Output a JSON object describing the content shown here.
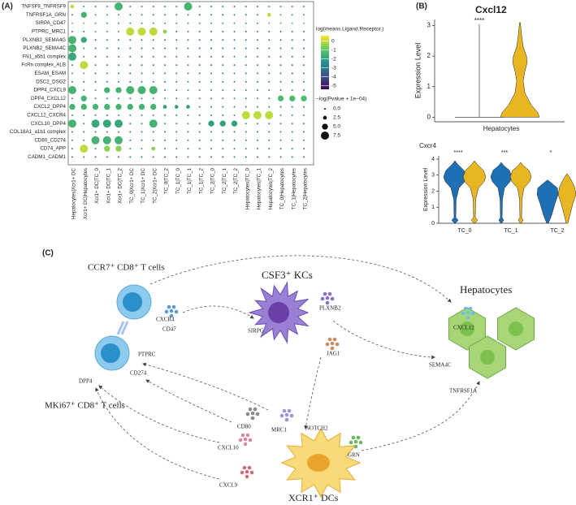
{
  "labels": [
    "(A)",
    "(B)",
    "(C)"
  ],
  "chart_data": [
    {
      "type": "dot",
      "x_categories": [
        "Hepatocytes|Xcr1+ DC",
        "Xcr1+ DC|Hepatocytes",
        "Xcr1+ DC|TC_0",
        "Xcr1+ DC|TC_1",
        "Xcr1+ DC|TC_2",
        "TC_0|Xcr1+ DC",
        "TC_1|Xcr1+ DC",
        "TC_2|Xcr1+ DC",
        "TC_0|TC_2",
        "TC_1|TC_0",
        "TC_1|TC_1",
        "TC_1|TC_2",
        "TC_2|TC_0",
        "TC_2|TC_1",
        "TC_2|TC_2",
        "Hepatocytes|TC_0",
        "Hepatocytes|TC_1",
        "Hepatocytes|TC_2",
        "TC_0|Hepatocytes",
        "TC_1|Hepatocytes",
        "TC_2|Hepatocytes"
      ],
      "y_categories": [
        "TNFSF9_TNFRSF9",
        "TNFRSF1A_GRN",
        "SIRPA_CD47",
        "PTPRC_MRC1",
        "PLXNB2_SEMA4G",
        "PLXNB2_SEMA4C",
        "FN1_a5b1 complex",
        "FcRn complex_ALB",
        "ESAM_ESAM",
        "DSC2_DSG2",
        "DPP4_CXCL9",
        "DPP4_CXCL12",
        "CXCL2_DPP4",
        "CXCL12_CXCR4",
        "CXCL10_DPP4",
        "COL18A1_a1b1 complex",
        "CD80_CD274",
        "CD74_APP",
        "CADM1_CADM1"
      ],
      "size_values": [
        [
          2.5,
          0,
          0,
          0,
          7.5,
          0,
          0,
          0,
          0,
          0,
          7.5,
          0,
          0,
          0,
          0,
          0,
          0,
          0,
          0,
          0,
          0
        ],
        [
          0,
          5,
          0,
          0,
          0,
          0,
          0,
          0,
          0,
          0,
          0,
          0,
          0,
          0,
          0,
          0,
          0,
          2.5,
          0,
          0,
          0
        ],
        [
          0,
          0,
          0,
          0,
          0,
          0,
          0,
          0,
          0,
          0,
          0,
          0,
          0,
          0,
          0,
          0,
          0,
          0,
          0,
          0,
          0
        ],
        [
          0,
          0,
          0,
          0,
          0,
          7.5,
          7.5,
          7.5,
          2.5,
          0,
          0,
          0,
          0,
          0,
          0,
          0,
          0,
          0,
          0,
          0,
          0
        ],
        [
          7.5,
          5,
          0,
          0,
          0,
          0,
          0,
          0,
          0,
          0,
          0,
          0,
          0,
          0,
          0,
          0,
          0,
          0,
          0,
          0,
          0
        ],
        [
          7.5,
          0,
          0,
          0,
          0,
          0,
          0,
          0,
          0,
          0,
          0,
          0,
          0,
          0,
          0,
          0,
          0,
          0,
          0,
          0,
          0
        ],
        [
          7.5,
          0,
          0,
          0,
          0,
          0,
          0,
          0,
          0,
          0,
          0,
          0,
          0,
          0,
          0,
          0,
          0,
          0,
          0,
          0,
          0
        ],
        [
          0,
          7.5,
          0,
          0,
          0,
          0,
          0,
          0,
          0,
          0,
          0,
          0,
          0,
          0,
          0,
          0,
          0,
          0,
          0,
          0,
          0
        ],
        [
          0,
          0,
          0,
          0,
          0,
          0,
          0,
          0,
          0,
          0,
          0,
          0,
          0,
          0,
          0,
          0,
          0,
          0,
          0,
          0,
          0
        ],
        [
          0,
          0,
          0,
          0,
          0,
          0,
          0,
          0,
          0,
          0,
          0,
          0,
          0,
          0,
          0,
          0,
          0,
          0,
          0,
          0,
          0
        ],
        [
          7.5,
          0,
          0,
          5,
          5,
          7.5,
          7.5,
          7.5,
          0,
          0,
          0,
          0,
          0,
          0,
          0,
          0,
          0,
          0,
          0,
          0,
          0
        ],
        [
          0,
          5,
          0,
          0,
          0,
          0,
          0,
          0,
          0,
          0,
          0,
          0,
          0,
          0,
          0,
          0,
          0,
          0,
          5,
          5,
          5
        ],
        [
          5,
          5,
          5,
          5,
          5,
          5,
          5,
          5,
          2.5,
          2.5,
          2.5,
          0,
          0,
          0,
          0,
          0,
          0,
          0,
          0,
          0,
          0
        ],
        [
          0,
          0,
          0,
          0,
          0,
          0,
          0,
          0,
          0,
          0,
          0,
          0,
          0,
          0,
          0,
          7.5,
          7.5,
          7.5,
          0,
          0,
          0
        ],
        [
          7.5,
          0,
          7.5,
          7.5,
          7.5,
          0,
          0,
          7.5,
          0,
          0,
          0,
          0,
          5,
          5,
          5,
          0,
          0,
          0,
          0,
          0,
          0
        ],
        [
          0,
          0,
          0,
          0,
          0,
          0,
          0,
          0,
          0,
          0,
          0,
          0,
          0,
          0,
          0,
          0,
          0,
          0,
          0,
          0,
          0
        ],
        [
          0,
          0,
          7.5,
          7.5,
          7.5,
          0,
          0,
          0,
          0,
          0,
          0,
          0,
          0,
          0,
          0,
          0,
          0,
          0,
          0,
          0,
          0
        ],
        [
          0,
          7.5,
          0,
          5,
          5,
          0,
          0,
          2.5,
          0,
          0,
          0,
          0,
          0,
          0,
          0,
          0,
          0,
          0,
          0,
          0,
          0
        ],
        [
          0,
          0,
          0,
          0,
          0,
          0,
          0,
          0,
          0,
          0,
          0,
          0,
          0,
          0,
          0,
          0,
          0,
          0,
          0,
          0,
          0
        ]
      ],
      "color_values": [
        [
          0,
          -2.5,
          -2.5,
          -2.5,
          -1.5,
          -3,
          -3,
          -3,
          -2.5,
          -2.5,
          -1.5,
          -2.5,
          -2.5,
          -2.5,
          -3,
          -3,
          -3,
          -2.5,
          -2.5,
          -2.5,
          -2.5
        ],
        [
          -2.5,
          -1.5,
          -2,
          -2,
          -2,
          -2.5,
          -2.5,
          -2.5,
          -3,
          -3,
          -3,
          -3,
          -3,
          -3,
          -3,
          -3,
          -3,
          0,
          -2,
          -2,
          -2
        ],
        [
          -1,
          -1,
          -2,
          -2,
          -2,
          -2,
          -2,
          -2,
          -2,
          -2,
          -2,
          -2,
          -2,
          -2,
          -2,
          -2,
          -2,
          -1,
          -1,
          -1,
          -1
        ],
        [
          -3,
          -3,
          -2,
          -2,
          -2,
          0,
          0,
          0,
          -0.5,
          -3,
          -3,
          -3,
          -3,
          -3,
          -3,
          -3,
          -3,
          -3,
          -3,
          -3,
          -3
        ],
        [
          -1.5,
          -1.8,
          -3,
          -3,
          -3,
          -3,
          -3,
          -3,
          -3,
          -3,
          -3,
          -3,
          -3,
          -3,
          -3,
          -3,
          -3,
          -3,
          -3,
          -3,
          -3
        ],
        [
          -1.5,
          -2.5,
          -3,
          -3,
          -3,
          -3,
          -3,
          -3,
          -3,
          -3,
          -3,
          -3,
          -3,
          -3,
          -3,
          -3,
          -3,
          -3,
          -3,
          -3,
          -3
        ],
        [
          -1.8,
          -2.5,
          -3,
          -3,
          -3,
          -3,
          -3,
          -3,
          -3,
          -3,
          -3,
          -3,
          -3,
          -3,
          -3,
          -3,
          -3,
          -3,
          -3,
          -3,
          -3
        ],
        [
          -2.5,
          0,
          -3,
          -3,
          -3,
          -3,
          -3,
          -3,
          -3,
          -3,
          -3,
          -3,
          -3,
          -3,
          -3,
          -3,
          -3,
          -3,
          -3,
          -3,
          -3
        ],
        [
          -2,
          -2,
          -3,
          -3,
          -3,
          -3,
          -3,
          -3,
          -3,
          -3,
          -3,
          -3,
          -3,
          -3,
          -3,
          -3,
          -3,
          -3,
          -3,
          -3,
          -3
        ],
        [
          -3,
          -3,
          -3,
          -3,
          -3,
          -3,
          -3,
          -3,
          -3,
          -3,
          -3,
          -3,
          -3,
          -3,
          -3,
          -3,
          -3,
          -3,
          -3,
          -3,
          -3
        ],
        [
          -1.5,
          -2.5,
          -2,
          -1.5,
          -1.5,
          -1.5,
          -1.5,
          -1.5,
          -2.5,
          -2.5,
          -2.5,
          -2.5,
          -2.5,
          -2.5,
          -2.5,
          -2.5,
          -2.5,
          -2.5,
          -2.5,
          -2.5,
          -2.5
        ],
        [
          -2.5,
          -1.5,
          -2.5,
          -2.5,
          -2.5,
          -2.5,
          -2.5,
          -2.5,
          -2.5,
          -2.5,
          -2.5,
          -2.5,
          -2.5,
          -2.5,
          -2.5,
          -2.5,
          -2.5,
          -2.5,
          -1.3,
          -1.3,
          -1.3
        ],
        [
          -1.5,
          -1.5,
          -1.5,
          -1.5,
          -1.5,
          -1.5,
          -1.5,
          -1.5,
          -2,
          -2,
          -2,
          -2.5,
          -2.5,
          -2.5,
          -2.5,
          -2.5,
          -2.5,
          -2.5,
          -2.5,
          -2.5,
          -2.5
        ],
        [
          -2.5,
          -2.5,
          -2.5,
          -2.5,
          -2.5,
          -2.5,
          -2.5,
          -2.5,
          -2.5,
          -2.5,
          -2.5,
          -2.5,
          -2.5,
          -2.5,
          -2.5,
          0,
          0,
          0,
          -2.5,
          -2.5,
          -2.5
        ],
        [
          -1.5,
          -2.5,
          -1.8,
          -1.8,
          -1.8,
          -2.5,
          -2.5,
          -1.5,
          -2.5,
          -2.5,
          -2.5,
          -2.5,
          -2,
          -2,
          -2,
          -2.5,
          -2.5,
          -2.5,
          -2.5,
          -2.5,
          -2.5
        ],
        [
          -3,
          -3,
          -3,
          -3,
          -3,
          -3,
          -3,
          -3,
          -3,
          -3,
          -3,
          -3,
          -3,
          -3,
          -3,
          -3,
          -3,
          -3,
          -3,
          -3,
          -3
        ],
        [
          -2.5,
          -2.5,
          -1.5,
          -1.5,
          -1.5,
          -2.5,
          -2.5,
          -2.5,
          -2.5,
          -2.5,
          -2.5,
          -2.5,
          -2.5,
          -2.5,
          -2.5,
          -2.5,
          -2.5,
          -2.5,
          -2.5,
          -2.5,
          -2.5
        ],
        [
          -2.5,
          0,
          -2.5,
          -0.5,
          -0.5,
          -2,
          -2,
          -0.5,
          -2.5,
          -2.5,
          -2.5,
          -2.5,
          -2.5,
          -2.5,
          -2.5,
          -2.5,
          -2.5,
          -2.5,
          -2.5,
          -2.5,
          -2.5
        ],
        [
          -3,
          -3,
          -3,
          -3,
          -3,
          -3,
          -3,
          -3,
          -3,
          -3,
          -3,
          -3,
          -3,
          -3,
          -3,
          -3,
          -3,
          -3,
          -3,
          -3,
          -3
        ]
      ],
      "colormap": [
        "#440154",
        "#3b528b",
        "#21918c",
        "#5ec962",
        "#fde725"
      ],
      "color_legend_title": "log(means.Ligand.Receptor.)",
      "colorlim": [
        -5.4,
        0.6
      ],
      "colorbar_ticks": [
        0,
        -1,
        -2,
        -3,
        -4,
        -5
      ],
      "size_legend_title": "−log(Pvalue + 1e−04)",
      "sizelim": [
        0,
        7.5
      ],
      "size_ticks": [
        {
          "value": 0,
          "label": "0.0"
        },
        2.5,
        {
          "value": 5,
          "label": "5.0"
        },
        7.5
      ]
    },
    {
      "type": "violin",
      "title": "Cxcl12",
      "categories": [
        "Hepatocytes"
      ],
      "ylabel": "Expression Level",
      "ylim": [
        -0.15,
        3.2
      ],
      "yticks": [
        0,
        1,
        2,
        3
      ],
      "annotations": [
        "****"
      ],
      "colors": [
        "#e7b622"
      ]
    },
    {
      "type": "violin",
      "title": "Cxcr4",
      "categories": [
        "TC_0",
        "TC_1",
        "TC_2"
      ],
      "ylabel": "Expression Level",
      "ylim": [
        0,
        4.2
      ],
      "yticks": [
        0,
        1,
        2,
        3,
        4
      ],
      "annotations": [
        "****",
        "***",
        "*"
      ],
      "colors": [
        "#1f6fb4",
        "#e7b622"
      ]
    }
  ],
  "diagram": {
    "cells": [
      "CCR7⁺ CD8⁺ T cells",
      "CSF3⁺ KCs",
      "Hepatocytes",
      "MKi67⁺ CD8⁺ T cells",
      "XCR1⁺ DCs"
    ],
    "genes": [
      "CXCR4",
      "CD47",
      "SIRPG",
      "PLXNB2",
      "CXCL12",
      "SEMA4C",
      "TNFRSF1A",
      "JAG1",
      "PTPRC",
      "CD274",
      "DPP4",
      "CD80",
      "MRC1",
      "NOTCH2",
      "CXCL10",
      "CXCL9",
      "GRN"
    ]
  }
}
